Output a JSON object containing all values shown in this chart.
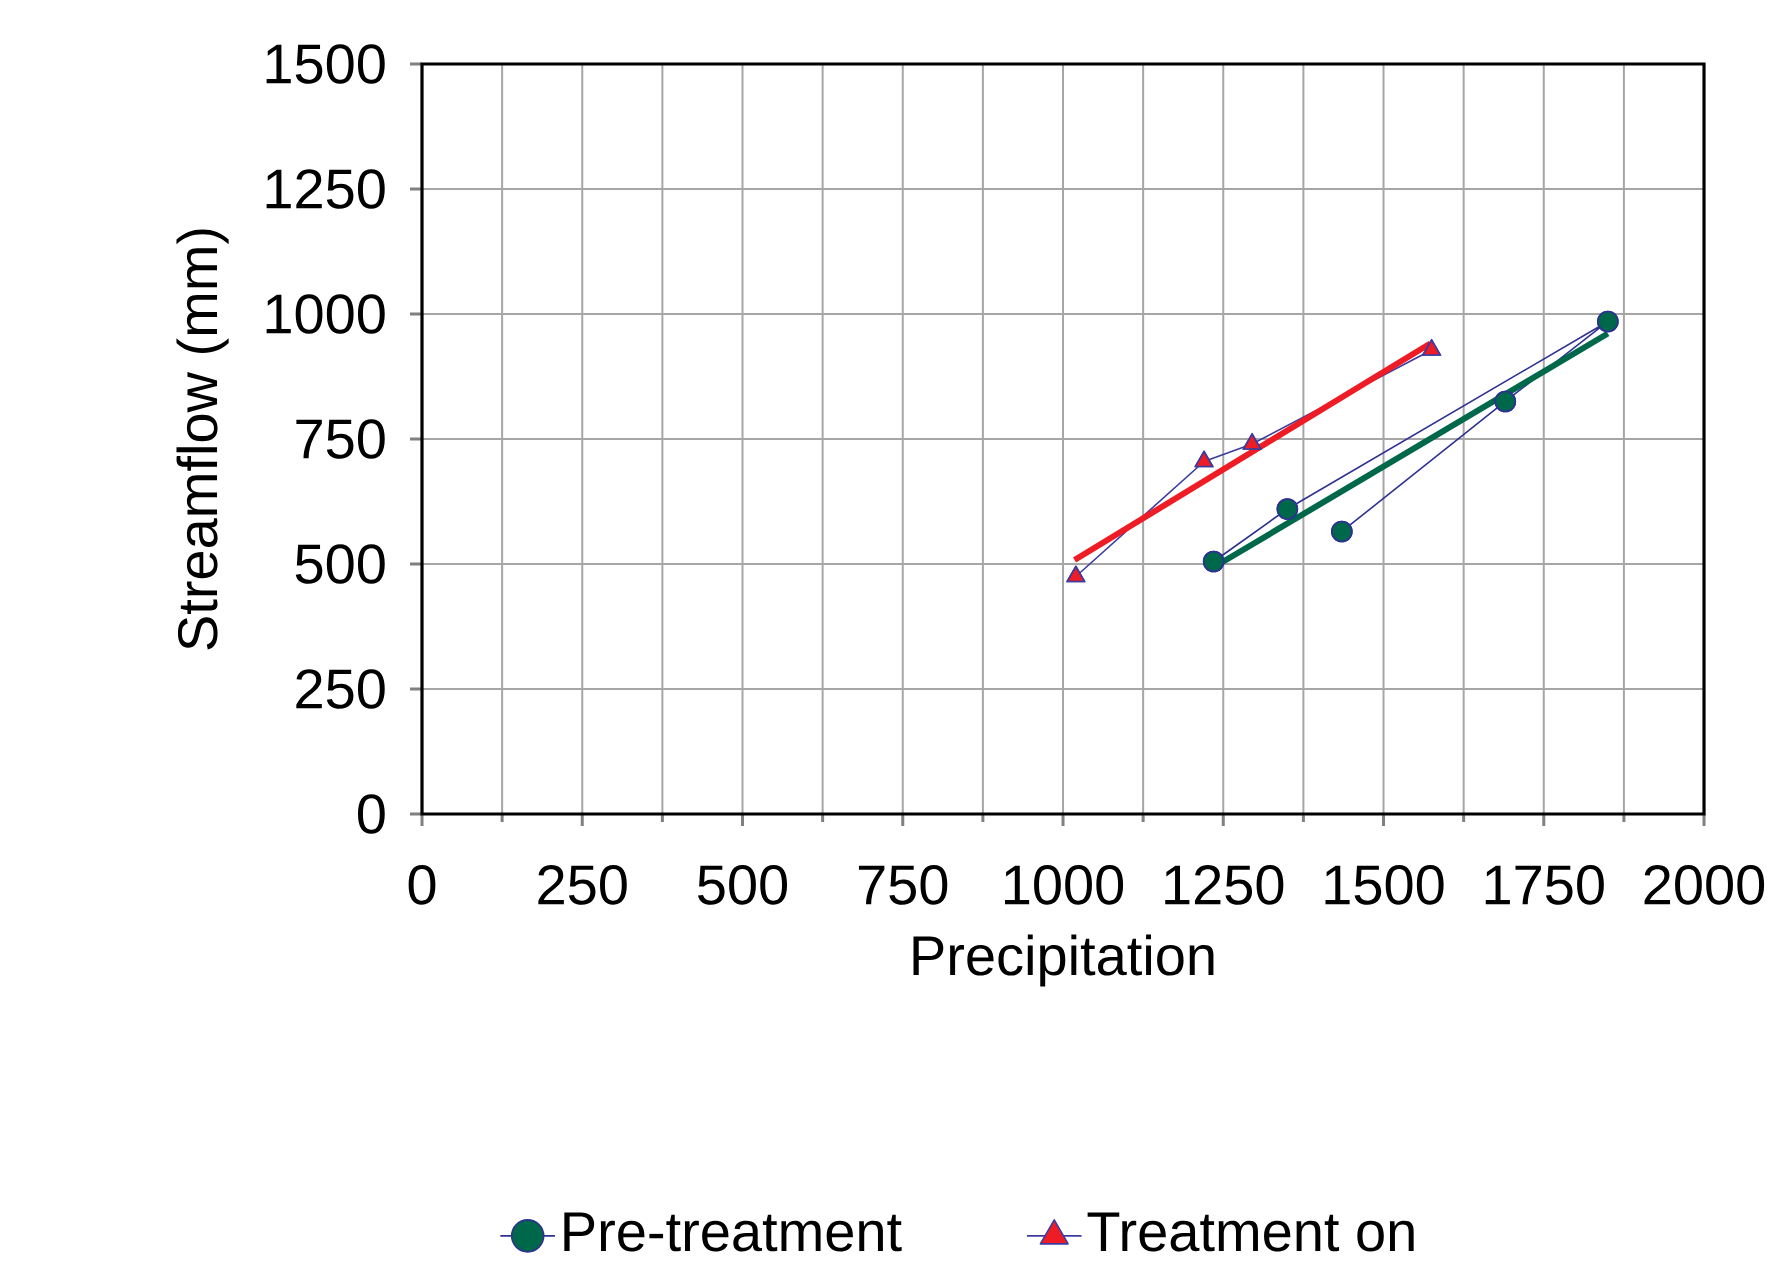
{
  "chart_data": {
    "type": "line",
    "xlabel": "Precipitation",
    "ylabel": "Streamflow (mm)",
    "xlim": [
      0,
      2000
    ],
    "xticks": [
      0,
      250,
      500,
      750,
      1000,
      1250,
      1500,
      1750,
      2000
    ],
    "ylim": [
      0,
      1500
    ],
    "yticks": [
      0,
      250,
      500,
      750,
      1000,
      1250,
      1500
    ],
    "grid": true,
    "legend": "bottom",
    "series": [
      {
        "name": "Pre-treatment",
        "color": "#2e3192",
        "colors": [
          "#00684a",
          "#00684a",
          "#00684a",
          "#00684a",
          "#00684a"
        ],
        "marker": "circle",
        "x": [
          1235,
          1350,
          1850,
          1690,
          1435
        ],
        "values": [
          505,
          610,
          985,
          825,
          565
        ]
      },
      {
        "name": "Treatment on",
        "color": "#3c3ca0",
        "colors": [
          "#ee1c25",
          "#ee1c25",
          "#ee1c25",
          "#ee1c25"
        ],
        "marker": "triangle",
        "x": [
          1020,
          1220,
          1295,
          1575
        ],
        "values": [
          475,
          705,
          740,
          928
        ]
      },
      {
        "color": "#00684a",
        "marker": "none",
        "x": [
          1237,
          1850
        ],
        "values": [
          495,
          961
        ]
      },
      {
        "color": "#ee1c25",
        "marker": "none",
        "x": [
          1018,
          1573
        ],
        "values": [
          508,
          941
        ]
      }
    ]
  }
}
